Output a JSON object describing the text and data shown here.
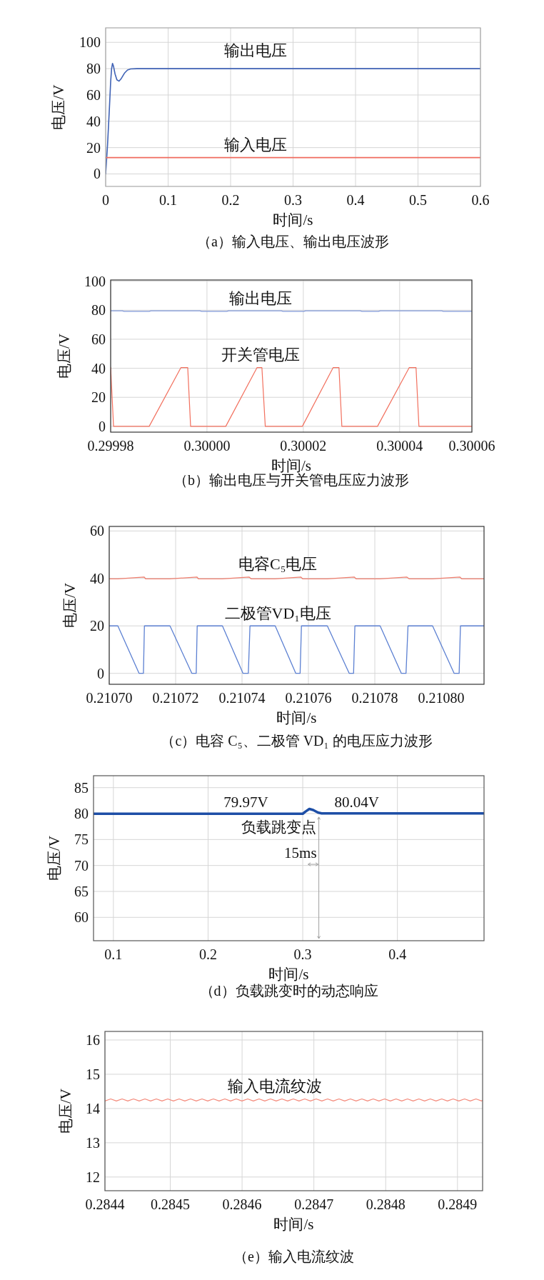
{
  "chart_data": [
    {
      "type": "line",
      "title": "（a）输入电压、输出电压波形",
      "xlabel": "时间/s",
      "ylabel": "电压/V",
      "xlim": [
        0,
        0.6
      ],
      "ylim": [
        -9.5,
        111
      ],
      "xticks": [
        0,
        0.1,
        0.2,
        0.3,
        0.4,
        0.5,
        0.6
      ],
      "yticks": [
        0,
        20,
        40,
        60,
        80,
        100
      ],
      "grid": true,
      "series": [
        {
          "name": "输出电压",
          "color": "#3f62b5",
          "x": [
            0,
            0.003,
            0.006,
            0.008,
            0.0095,
            0.011,
            0.0125,
            0.015,
            0.018,
            0.0215,
            0.025,
            0.03,
            0.035,
            0.04,
            0.05,
            0.6
          ],
          "values": [
            0,
            22,
            50,
            70,
            80,
            84,
            82,
            76,
            71.5,
            70.5,
            72.5,
            76.5,
            79,
            79.8,
            80,
            80
          ]
        },
        {
          "name": "输入电压",
          "color": "#f06b5e",
          "x": [
            0,
            0.6
          ],
          "values": [
            12.4,
            12.4
          ]
        }
      ]
    },
    {
      "type": "line",
      "title": "（b）输出电压与开关管电压应力波形",
      "xlabel": "时间/s",
      "ylabel": "电压/V",
      "xlim": [
        0.29998,
        0.300055
      ],
      "ylim": [
        -4,
        100.8
      ],
      "xticks": [
        0.29998,
        {
          "value": 0.3,
          "label": "0.30000"
        },
        0.30002,
        0.30004,
        {
          "value": 0.300055,
          "label": "0.30006"
        }
      ],
      "yticks": [
        0,
        20,
        40,
        60,
        80,
        100
      ],
      "grid": true,
      "series": [
        {
          "name": "输出电压",
          "color": "#7f97d8",
          "x": [
            0.29998,
            0.2999824,
            0.2999828,
            0.299988,
            0.2999884,
            0.2999985,
            0.2999989,
            0.3000041,
            0.3000045,
            0.3000154,
            0.3000158,
            0.3000201,
            0.3000205,
            0.3000318,
            0.3000322,
            0.3000356,
            0.300036,
            0.3000487,
            0.3000491,
            0.300055
          ],
          "values": [
            79.6,
            79.6,
            79.2,
            79.2,
            79.6,
            79.6,
            79.2,
            79.2,
            79.6,
            79.6,
            79.2,
            79.2,
            79.6,
            79.6,
            79.2,
            79.2,
            79.6,
            79.6,
            79.2,
            79.2
          ]
        },
        {
          "name": "开关管电压",
          "color": "#f2705e",
          "x": [
            0.29998,
            0.2999806,
            0.299988,
            0.2999946,
            0.299996,
            0.2999966,
            0.3000039,
            0.3000104,
            0.3000114,
            0.3000121,
            0.3000198,
            0.3000262,
            0.3000274,
            0.300028,
            0.3000354,
            0.300042,
            0.3000434,
            0.300044,
            0.300055
          ],
          "values": [
            40.5,
            0,
            0,
            40.5,
            40.5,
            0,
            0,
            40.5,
            40.5,
            0,
            0,
            40.5,
            40.5,
            0,
            0,
            40.5,
            40.5,
            0,
            0
          ]
        }
      ]
    },
    {
      "type": "line",
      "title": "（c）电容 C₅、二极管 VD₁ 的电压应力波形",
      "xlabel": "时间/s",
      "ylabel": "电压/V",
      "xlim": [
        0.2107,
        0.2108129
      ],
      "ylim": [
        -4.6,
        61.9
      ],
      "xticks": [
        {
          "value": 0.2107,
          "label": "0.21070"
        },
        0.21072,
        0.21074,
        0.21076,
        0.21078,
        {
          "value": 0.2108,
          "label": "0.21080"
        }
      ],
      "yticks": [
        0,
        20,
        40,
        60
      ],
      "grid": true,
      "series": [
        {
          "name": "电容C₅电压",
          "color": "#f07f6f",
          "x": [
            0.2107,
            0.2107026,
            0.2107105,
            0.210711,
            0.2107183,
            0.2107264,
            0.2107269,
            0.2107341,
            0.2107421,
            0.2107428,
            0.21075,
            0.2107577,
            0.2107583,
            0.2107657,
            0.2107738,
            0.2107744,
            0.2107816,
            0.2107896,
            0.2107904,
            0.2107974,
            0.2108056,
            0.2108062,
            0.2108129
          ],
          "values": [
            39.8,
            39.8,
            40.6,
            39.8,
            39.8,
            40.6,
            39.8,
            39.8,
            40.6,
            39.8,
            39.8,
            40.6,
            39.8,
            39.8,
            40.6,
            39.8,
            39.8,
            40.6,
            39.8,
            39.8,
            40.6,
            39.8,
            39.8
          ]
        },
        {
          "name": "二极管VD₁电压",
          "color": "#5c80d2",
          "x": [
            0.2107,
            0.2107026,
            0.210709,
            0.2107103,
            0.2107106,
            0.2107183,
            0.2107249,
            0.2107262,
            0.2107265,
            0.2107341,
            0.2107403,
            0.2107419,
            0.2107424,
            0.21075,
            0.2107562,
            0.2107575,
            0.2107579,
            0.2107657,
            0.2107723,
            0.2107736,
            0.210774,
            0.2107816,
            0.210788,
            0.2107894,
            0.21079,
            0.2107974,
            0.2108039,
            0.2108054,
            0.2108058,
            0.2108129
          ],
          "values": [
            20,
            20,
            0,
            0,
            20,
            20,
            0,
            0,
            20,
            20,
            0,
            0,
            20,
            20,
            0,
            0,
            20,
            20,
            0,
            0,
            20,
            20,
            0,
            0,
            20,
            20,
            0,
            0,
            20,
            20
          ]
        }
      ]
    },
    {
      "type": "line",
      "title": "（d）负载跳变时的动态响应",
      "xlabel": "时间/s",
      "ylabel": "电压/V",
      "xlim": [
        0.079,
        0.4915
      ],
      "ylim": [
        55.5,
        87.3
      ],
      "xticks": [
        0.1,
        0.2,
        0.3,
        0.4
      ],
      "yticks": [
        60,
        65,
        70,
        75,
        80,
        85
      ],
      "grid": true,
      "series": [
        {
          "color": "#1d4ea6",
          "x": [
            0.079,
            0.24,
            0.3,
            0.303,
            0.307,
            0.311,
            0.316,
            0.32,
            0.357,
            0.4915
          ],
          "values": [
            79.97,
            79.97,
            79.97,
            80.4,
            80.9,
            80.7,
            80.2,
            80.04,
            80.04,
            80.04
          ],
          "value_labels": [
            null,
            "79.97V",
            null,
            null,
            null,
            null,
            null,
            null,
            "80.04V",
            null
          ]
        }
      ],
      "annotations": [
        "15ms"
      ],
      "ref_lines": [
        {
          "axis": "x",
          "value": 0.317,
          "label": "负载跳变点",
          "color": "#a0a0a0"
        }
      ]
    },
    {
      "type": "line",
      "title": "（e）输入电流纹波",
      "xlabel": "时间/s",
      "ylabel": "电压/V",
      "xlim": [
        0.284409,
        0.284935
      ],
      "ylim": [
        11.6,
        16.25
      ],
      "xticks": [
        {
          "value": 0.284409,
          "label": "0.2844"
        },
        0.2845,
        0.2846,
        0.2847,
        0.2848,
        0.2849
      ],
      "yticks": [
        12,
        13,
        14,
        15,
        16
      ],
      "grid": true,
      "series": [
        {
          "name": "输入电流纹波",
          "color": "#f4897a",
          "x": [
            0.284409,
            0.284417,
            0.2844249,
            0.2844329,
            0.2844408,
            0.2844488,
            0.2844567,
            0.2844647,
            0.2844726,
            0.2844806,
            0.2844885,
            0.2844965,
            0.2845044,
            0.2845124,
            0.2845203,
            0.2845283,
            0.2845362,
            0.2845442,
            0.2845521,
            0.2845601,
            0.284568,
            0.284576,
            0.2845839,
            0.2845919,
            0.2845998,
            0.2846078,
            0.2846157,
            0.2846237,
            0.2846316,
            0.2846396,
            0.2846475,
            0.2846555,
            0.2846634,
            0.2846714,
            0.2846793,
            0.2846873,
            0.2846952,
            0.2847032,
            0.2847111,
            0.2847191,
            0.284727,
            0.284735,
            0.2847429,
            0.2847509,
            0.2847588,
            0.2847668,
            0.2847747,
            0.2847827,
            0.2847906,
            0.2847986,
            0.2848065,
            0.2848145,
            0.2848224,
            0.2848304,
            0.2848383,
            0.2848463,
            0.2848542,
            0.2848622,
            0.2848701,
            0.2848781,
            0.284886,
            0.284894,
            0.2849019,
            0.2849099,
            0.2849178,
            0.2849258,
            0.2849337,
            0.284935
          ],
          "values": [
            14.22,
            14.28,
            14.22,
            14.28,
            14.22,
            14.28,
            14.22,
            14.28,
            14.22,
            14.28,
            14.22,
            14.28,
            14.22,
            14.28,
            14.22,
            14.28,
            14.22,
            14.28,
            14.22,
            14.28,
            14.22,
            14.28,
            14.22,
            14.28,
            14.22,
            14.28,
            14.22,
            14.28,
            14.22,
            14.28,
            14.22,
            14.28,
            14.22,
            14.28,
            14.22,
            14.28,
            14.22,
            14.28,
            14.22,
            14.28,
            14.22,
            14.28,
            14.22,
            14.28,
            14.22,
            14.28,
            14.22,
            14.28,
            14.22,
            14.28,
            14.22,
            14.28,
            14.22,
            14.28,
            14.22,
            14.28,
            14.22,
            14.28,
            14.22,
            14.28,
            14.22,
            14.28,
            14.22,
            14.28,
            14.22,
            14.28,
            14.22,
            14.24
          ]
        }
      ]
    }
  ]
}
